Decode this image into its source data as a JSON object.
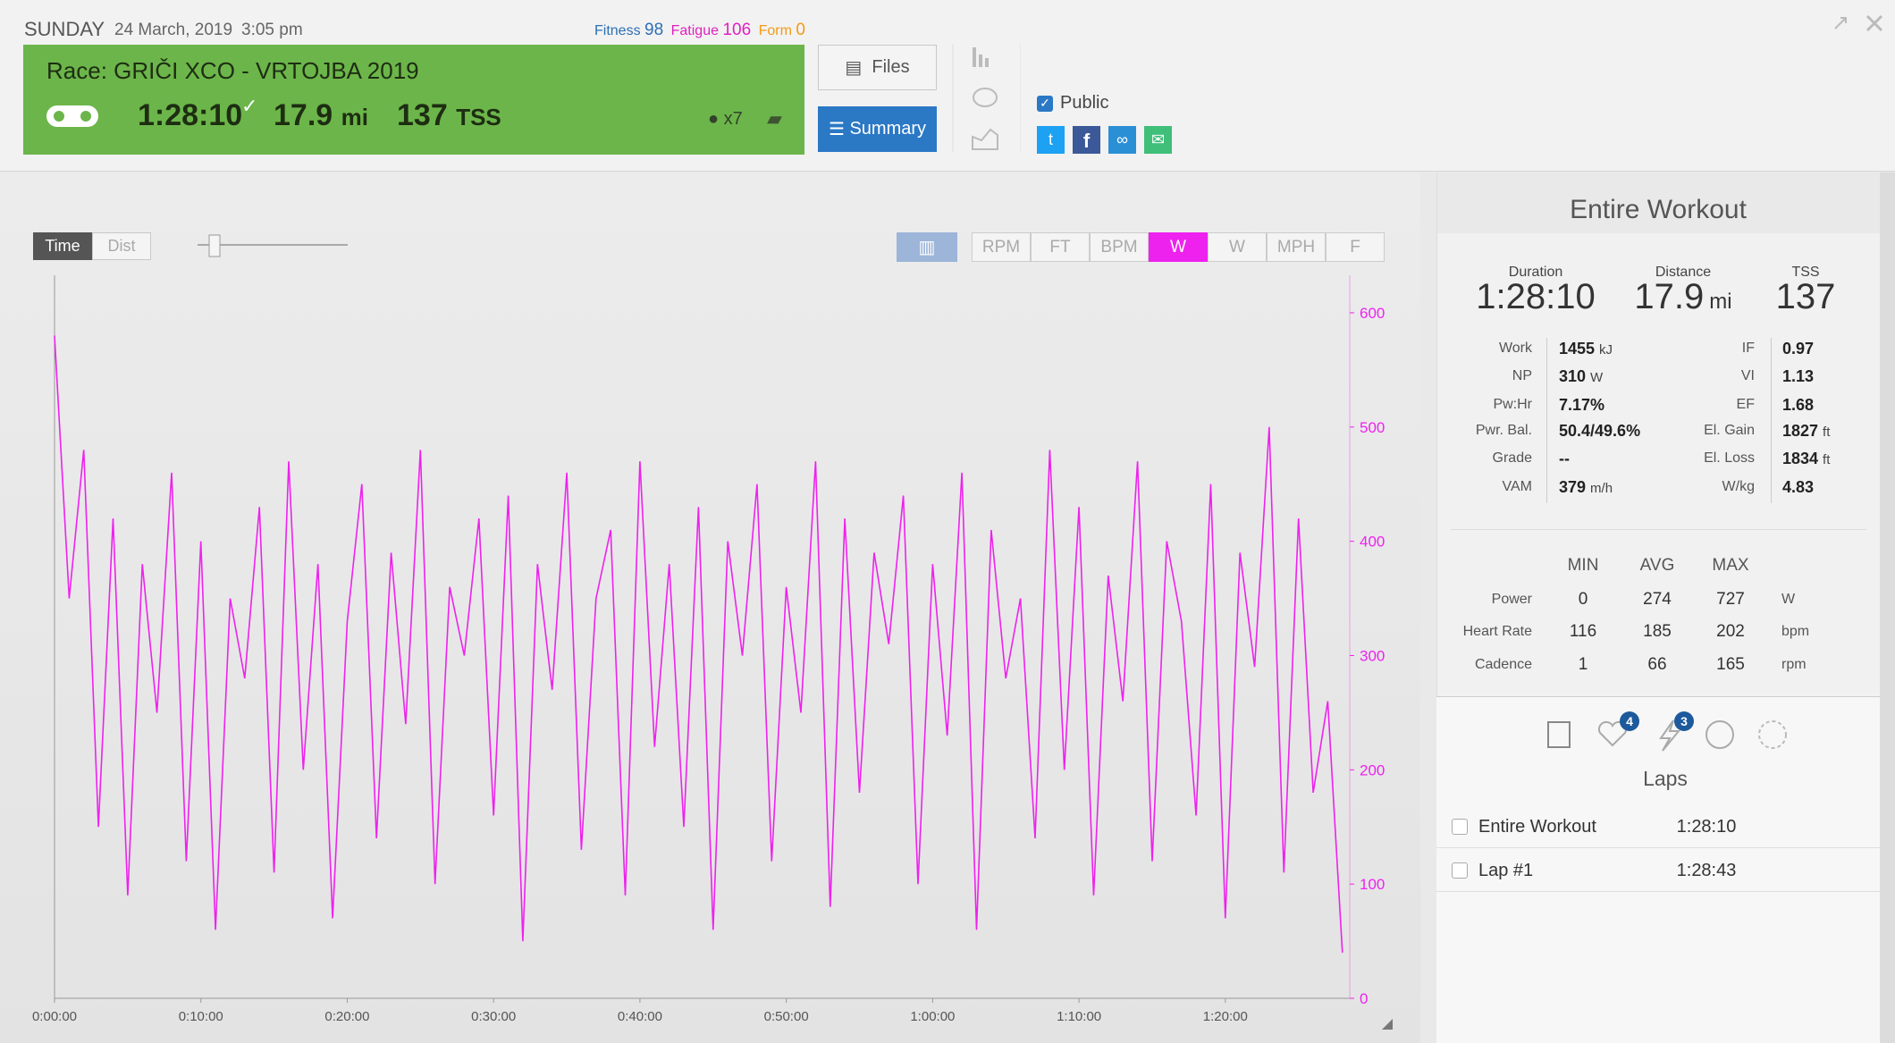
{
  "header": {
    "day": "SUNDAY",
    "date": "24 March, 2019",
    "time": "3:05 pm",
    "fitness_label": "Fitness",
    "fitness": "98",
    "fatigue_label": "Fatigue",
    "fatigue": "106",
    "form_label": "Form",
    "form": "0"
  },
  "workout": {
    "title": "Race: GRIČI XCO - VRTOJBA 2019",
    "duration": "1:28:10",
    "distance": "17.9",
    "distance_unit": "mi",
    "tss": "137",
    "tss_unit": "TSS",
    "kudos": "x7"
  },
  "buttons": {
    "files": "Files",
    "summary": "Summary",
    "public": "Public"
  },
  "chart_controls": {
    "time": "Time",
    "dist": "Dist",
    "channels": [
      "RPM",
      "FT",
      "BPM",
      "W",
      "W",
      "MPH",
      "F"
    ]
  },
  "chart_data": {
    "type": "line",
    "color": "#ee22ee",
    "x": [
      0,
      60,
      120,
      180,
      240,
      300,
      360,
      420,
      480,
      540,
      600,
      660,
      720,
      780,
      840,
      900,
      960,
      1020,
      1080,
      1140,
      1200,
      1260,
      1320,
      1380,
      1440,
      1500,
      1560,
      1620,
      1680,
      1740,
      1800,
      1860,
      1920,
      1980,
      2040,
      2100,
      2160,
      2220,
      2280,
      2340,
      2400,
      2460,
      2520,
      2580,
      2640,
      2700,
      2760,
      2820,
      2880,
      2940,
      3000,
      3060,
      3120,
      3180,
      3240,
      3300,
      3360,
      3420,
      3480,
      3540,
      3600,
      3660,
      3720,
      3780,
      3840,
      3900,
      3960,
      4020,
      4080,
      4140,
      4200,
      4260,
      4320,
      4380,
      4440,
      4500,
      4560,
      4620,
      4680,
      4740,
      4800,
      4860,
      4920,
      4980,
      5040,
      5100,
      5160,
      5220,
      5280
    ],
    "values": [
      580,
      350,
      480,
      150,
      420,
      90,
      380,
      250,
      460,
      120,
      400,
      60,
      350,
      280,
      430,
      110,
      470,
      200,
      380,
      70,
      330,
      450,
      140,
      390,
      240,
      480,
      100,
      360,
      300,
      420,
      160,
      440,
      50,
      380,
      270,
      460,
      130,
      350,
      410,
      90,
      470,
      220,
      380,
      150,
      430,
      60,
      400,
      300,
      450,
      120,
      360,
      250,
      470,
      80,
      420,
      180,
      390,
      310,
      440,
      100,
      380,
      230,
      460,
      60,
      410,
      280,
      350,
      140,
      480,
      200,
      430,
      90,
      370,
      260,
      470,
      120,
      400,
      330,
      160,
      450,
      70,
      390,
      290,
      500,
      110,
      420,
      180,
      260,
      40
    ],
    "xlim": [
      0,
      5310
    ],
    "ylim": [
      0,
      625
    ],
    "xticks": [
      {
        "value": 0,
        "label": "0:00:00"
      },
      {
        "value": 600,
        "label": "0:10:00"
      },
      {
        "value": 1200,
        "label": "0:20:00"
      },
      {
        "value": 1800,
        "label": "0:30:00"
      },
      {
        "value": 2400,
        "label": "0:40:00"
      },
      {
        "value": 3000,
        "label": "0:50:00"
      },
      {
        "value": 3600,
        "label": "1:00:00"
      },
      {
        "value": 4200,
        "label": "1:10:00"
      },
      {
        "value": 4800,
        "label": "1:20:00"
      }
    ],
    "yticks": [
      0,
      100,
      200,
      300,
      400,
      500,
      600
    ]
  },
  "summary": {
    "title": "Entire Workout",
    "headline": [
      {
        "label": "Duration",
        "value": "1:28:10"
      },
      {
        "label": "Distance",
        "value": "17.9",
        "unit": "mi"
      },
      {
        "label": "TSS",
        "value": "137"
      }
    ],
    "metrics_left": [
      {
        "label": "Work",
        "value": "1455",
        "unit": "kJ"
      },
      {
        "label": "NP",
        "value": "310",
        "unit": "W"
      },
      {
        "label": "Pw:Hr",
        "value": "7.17%"
      },
      {
        "label": "Pwr. Bal.",
        "value": "50.4/49.6%"
      },
      {
        "label": "Grade",
        "value": "--"
      },
      {
        "label": "VAM",
        "value": "379",
        "unit": "m/h"
      }
    ],
    "metrics_right": [
      {
        "label": "IF",
        "value": "0.97"
      },
      {
        "label": "VI",
        "value": "1.13"
      },
      {
        "label": "EF",
        "value": "1.68"
      },
      {
        "label": "El. Gain",
        "value": "1827",
        "unit": "ft"
      },
      {
        "label": "El. Loss",
        "value": "1834",
        "unit": "ft"
      },
      {
        "label": "W/kg",
        "value": "4.83"
      }
    ],
    "table": {
      "columns": [
        "MIN",
        "AVG",
        "MAX"
      ],
      "rows": [
        {
          "label": "Power",
          "min": "0",
          "avg": "274",
          "max": "727",
          "unit": "W"
        },
        {
          "label": "Heart Rate",
          "min": "116",
          "avg": "185",
          "max": "202",
          "unit": "bpm"
        },
        {
          "label": "Cadence",
          "min": "1",
          "avg": "66",
          "max": "165",
          "unit": "rpm"
        }
      ]
    },
    "badges": [
      "4",
      "3"
    ],
    "laps_title": "Laps",
    "laps": [
      {
        "name": "Entire Workout",
        "time": "1:28:10"
      },
      {
        "name": "Lap #1",
        "time": "1:28:43"
      }
    ]
  }
}
